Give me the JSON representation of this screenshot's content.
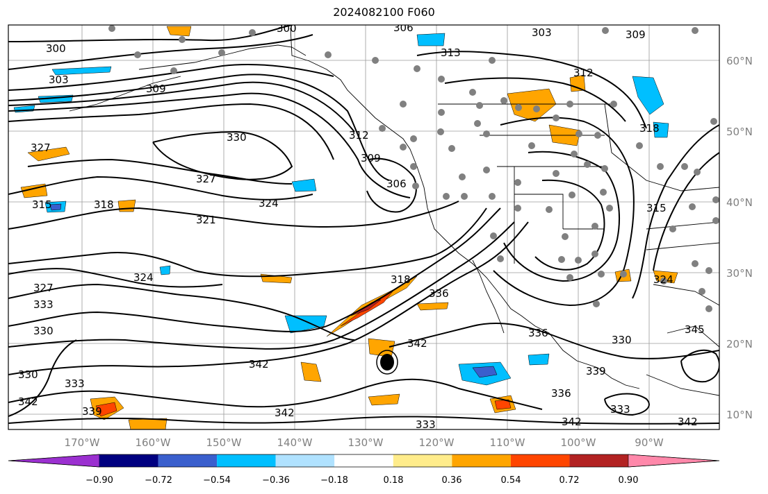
{
  "title": "2024082100 F060",
  "map": {
    "longitude_labels": [
      "170°W",
      "160°W",
      "150°W",
      "140°W",
      "130°W",
      "120°W",
      "110°W",
      "100°W",
      "90°W"
    ],
    "latitude_labels": [
      "60°N",
      "50°N",
      "40°N",
      "30°N",
      "20°N",
      "10°N"
    ],
    "contour_labels": [
      "300",
      "303",
      "309",
      "300",
      "306",
      "303",
      "309",
      "313",
      "312",
      "327",
      "330",
      "327",
      "324",
      "321",
      "318",
      "315",
      "312",
      "309",
      "306",
      "318",
      "327",
      "333",
      "330",
      "324",
      "336",
      "318",
      "315",
      "324",
      "342",
      "342",
      "333",
      "330",
      "339",
      "336",
      "342",
      "333",
      "339",
      "330",
      "333",
      "342",
      "342",
      "336",
      "345",
      "342"
    ]
  },
  "colorbar": {
    "tick_labels": [
      "−0.90",
      "−0.72",
      "−0.54",
      "−0.36",
      "−0.18",
      "0.18",
      "0.36",
      "0.54",
      "0.72",
      "0.90"
    ],
    "colors": [
      "#9b30d0",
      "#000080",
      "#3a5fcd",
      "#00bfff",
      "#b0e2ff",
      "#ffffff",
      "#ffec8b",
      "#ffa500",
      "#ff4500",
      "#b22222",
      "#ff88aa"
    ]
  }
}
